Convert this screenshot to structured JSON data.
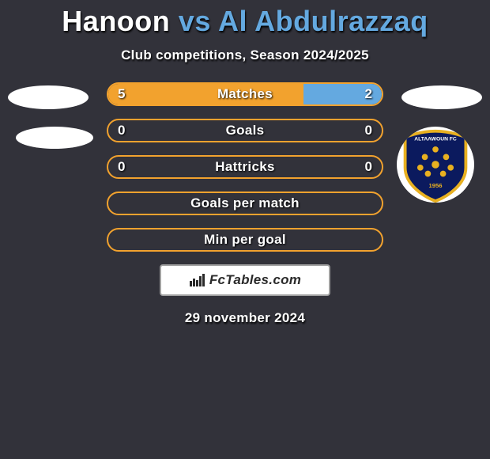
{
  "title_player1": "Hanoon",
  "title_vs": "vs",
  "title_player2": "Al Abdulrazzaq",
  "subtitle": "Club competitions, Season 2024/2025",
  "brand": "FcTables.com",
  "date": "29 november 2024",
  "colors": {
    "background": "#32323a",
    "player1_accent": "#f2a22e",
    "player2_accent": "#64a9e0",
    "text": "#ffffff",
    "brand_bg": "#ffffff",
    "brand_fg": "#2a2a2a",
    "brand_border": "#a0a0a0"
  },
  "crest": {
    "name": "ALTAAWOUN FC",
    "year": "1956",
    "shield_fill": "#0b1a5e",
    "shield_stroke": "#e8b020",
    "star_fill": "#e8b020"
  },
  "bars": [
    {
      "label": "Matches",
      "left_value": "5",
      "right_value": "2",
      "left_pct": 71.4,
      "right_pct": 28.6,
      "left_fill": "#f2a22e",
      "right_fill": "#64a9e0",
      "border": "#f2a22e"
    },
    {
      "label": "Goals",
      "left_value": "0",
      "right_value": "0",
      "left_pct": 50,
      "right_pct": 50,
      "left_fill": "transparent",
      "right_fill": "transparent",
      "border": "#f2a22e"
    },
    {
      "label": "Hattricks",
      "left_value": "0",
      "right_value": "0",
      "left_pct": 50,
      "right_pct": 50,
      "left_fill": "transparent",
      "right_fill": "transparent",
      "border": "#f2a22e"
    },
    {
      "label": "Goals per match",
      "left_value": "",
      "right_value": "",
      "left_pct": 50,
      "right_pct": 50,
      "left_fill": "transparent",
      "right_fill": "transparent",
      "border": "#f2a22e"
    },
    {
      "label": "Min per goal",
      "left_value": "",
      "right_value": "",
      "left_pct": 50,
      "right_pct": 50,
      "left_fill": "transparent",
      "right_fill": "transparent",
      "border": "#f2a22e"
    }
  ]
}
